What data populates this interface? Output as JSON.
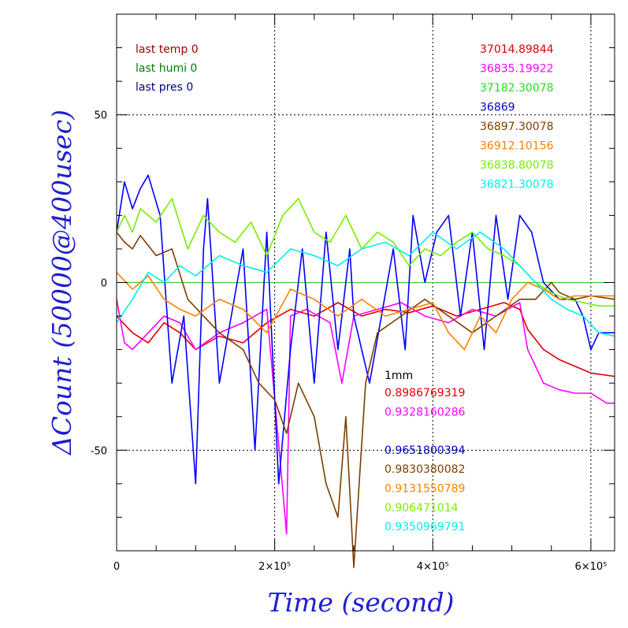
{
  "chart_data": {
    "type": "line",
    "xlabel": "Time (second)",
    "ylabel": "ΔCount (50000@400usec)",
    "xlim": [
      0,
      630000
    ],
    "ylim": [
      -80,
      80
    ],
    "x_ticks": [
      {
        "value": 0,
        "label": "0"
      },
      {
        "value": 200000,
        "label": "2×10⁵"
      },
      {
        "value": 400000,
        "label": "4×10⁵"
      },
      {
        "value": 600000,
        "label": "6×10⁵"
      }
    ],
    "y_ticks": [
      {
        "value": 50,
        "label": "50"
      },
      {
        "value": 0,
        "label": "0"
      },
      {
        "value": -50,
        "label": "-50"
      }
    ],
    "grid": true,
    "status_labels": [
      {
        "text": "last temp 0",
        "color": "#a00000"
      },
      {
        "text": "last humi 0",
        "color": "#008000"
      },
      {
        "text": "last pres 0",
        "color": "#000080"
      }
    ],
    "baseline_values": [
      {
        "text": "37014.89844",
        "color": "#e00000"
      },
      {
        "text": "36835.19922",
        "color": "#ff00ff"
      },
      {
        "text": "37182.30078",
        "color": "#22dd22"
      },
      {
        "text": "36869",
        "color": "#0000cc"
      },
      {
        "text": "36897.30078",
        "color": "#7b3f00"
      },
      {
        "text": "36912.10156",
        "color": "#ff8000"
      },
      {
        "text": "36838.80078",
        "color": "#77ee00"
      },
      {
        "text": "36821.30078",
        "color": "#00eeee"
      }
    ],
    "coefficient_header": {
      "text": "1mm",
      "color": "#000000"
    },
    "coefficients": [
      {
        "text": "0.8986769319",
        "color": "#e00000"
      },
      {
        "text": "0.9328160286",
        "color": "#ff00ff"
      },
      {
        "text": "",
        "color": "#22dd22"
      },
      {
        "text": "0.9651800394",
        "color": "#0000cc"
      },
      {
        "text": "0.9830380082",
        "color": "#7b3f00"
      },
      {
        "text": "0.9131550789",
        "color": "#ff8000"
      },
      {
        "text": "0.906471014",
        "color": "#77ee00"
      },
      {
        "text": "0.9350969791",
        "color": "#00eeee"
      }
    ],
    "series": [
      {
        "color": "#22cc22",
        "x": [
          0,
          630000
        ],
        "y": [
          0,
          0
        ]
      },
      {
        "color": "#e00000",
        "x": [
          0,
          20000,
          40000,
          60000,
          80000,
          100000,
          130000,
          160000,
          190000,
          220000,
          250000,
          280000,
          310000,
          340000,
          370000,
          400000,
          430000,
          460000,
          490000,
          510000,
          520000,
          530000,
          540000,
          560000,
          580000,
          600000,
          630000
        ],
        "y": [
          -10,
          -15,
          -18,
          -12,
          -15,
          -20,
          -16,
          -18,
          -12,
          -8,
          -10,
          -6,
          -10,
          -8,
          -9,
          -7,
          -10,
          -8,
          -6,
          -8,
          -14,
          -17,
          -20,
          -23,
          -25,
          -27,
          -28
        ]
      },
      {
        "color": "#ff00ff",
        "x": [
          0,
          10000,
          20000,
          40000,
          60000,
          80000,
          100000,
          130000,
          160000,
          190000,
          215000,
          220000,
          240000,
          270000,
          285000,
          300000,
          330000,
          360000,
          390000,
          420000,
          450000,
          480000,
          510000,
          520000,
          530000,
          540000,
          560000,
          580000,
          600000,
          620000,
          630000
        ],
        "y": [
          -5,
          -18,
          -20,
          -15,
          -10,
          -12,
          -20,
          -15,
          -12,
          -8,
          -75,
          -10,
          -8,
          -12,
          -30,
          -10,
          -8,
          -6,
          -10,
          -12,
          -8,
          -10,
          -6,
          -20,
          -25,
          -30,
          -32,
          -33,
          -33,
          -36,
          -36
        ]
      },
      {
        "color": "#0000ff",
        "x": [
          0,
          10000,
          20000,
          30000,
          40000,
          55000,
          70000,
          85000,
          100000,
          110000,
          115000,
          130000,
          145000,
          160000,
          175000,
          190000,
          205000,
          220000,
          235000,
          250000,
          265000,
          280000,
          295000,
          300000,
          320000,
          335000,
          350000,
          365000,
          375000,
          390000,
          405000,
          420000,
          435000,
          450000,
          465000,
          480000,
          495000,
          510000,
          525000,
          540000,
          560000,
          580000,
          590000,
          600000,
          610000,
          620000,
          630000
        ],
        "y": [
          15,
          30,
          22,
          28,
          32,
          20,
          -30,
          -10,
          -60,
          10,
          25,
          -30,
          -10,
          10,
          -50,
          15,
          -60,
          -20,
          10,
          -30,
          15,
          -20,
          10,
          -10,
          -30,
          -10,
          10,
          -20,
          20,
          0,
          15,
          20,
          -10,
          15,
          -20,
          20,
          -5,
          20,
          15,
          0,
          -5,
          -5,
          -10,
          -20,
          -15,
          -15,
          -15
        ]
      },
      {
        "color": "#7b3f00",
        "x": [
          0,
          10000,
          20000,
          30000,
          50000,
          70000,
          90000,
          110000,
          130000,
          160000,
          180000,
          200000,
          215000,
          230000,
          250000,
          265000,
          280000,
          290000,
          300000,
          315000,
          330000,
          360000,
          390000,
          420000,
          450000,
          480000,
          510000,
          530000,
          550000,
          560000,
          580000,
          600000,
          630000
        ],
        "y": [
          15,
          12,
          10,
          14,
          8,
          10,
          -5,
          -10,
          -15,
          -20,
          -30,
          -35,
          -45,
          -30,
          -40,
          -60,
          -70,
          -40,
          -85,
          -30,
          -15,
          -10,
          -5,
          -10,
          -15,
          -10,
          -5,
          -5,
          0,
          -3,
          -5,
          -4,
          -5
        ]
      },
      {
        "color": "#ff8000",
        "x": [
          0,
          20000,
          40000,
          60000,
          80000,
          100000,
          130000,
          160000,
          190000,
          220000,
          250000,
          280000,
          310000,
          340000,
          370000,
          400000,
          420000,
          440000,
          460000,
          480000,
          500000,
          520000,
          540000,
          560000,
          580000,
          600000,
          630000
        ],
        "y": [
          3,
          -2,
          2,
          -5,
          -8,
          -10,
          -5,
          -8,
          -15,
          -2,
          -5,
          -10,
          -5,
          -10,
          -8,
          -6,
          -15,
          -20,
          -10,
          -15,
          -5,
          0,
          -2,
          -5,
          -4,
          -4,
          -4
        ]
      },
      {
        "color": "#77ee00",
        "x": [
          0,
          10000,
          20000,
          30000,
          50000,
          70000,
          90000,
          110000,
          130000,
          150000,
          170000,
          190000,
          210000,
          230000,
          250000,
          270000,
          290000,
          310000,
          330000,
          350000,
          370000,
          390000,
          410000,
          430000,
          450000,
          470000,
          490000,
          510000,
          530000,
          550000,
          570000,
          590000,
          610000,
          630000
        ],
        "y": [
          15,
          20,
          15,
          22,
          18,
          25,
          10,
          20,
          15,
          12,
          18,
          8,
          20,
          25,
          15,
          12,
          20,
          10,
          15,
          12,
          5,
          10,
          8,
          12,
          15,
          10,
          8,
          5,
          0,
          -3,
          -5,
          -6,
          -7,
          -7
        ]
      },
      {
        "color": "#00eeee",
        "x": [
          0,
          20000,
          40000,
          60000,
          80000,
          100000,
          130000,
          160000,
          190000,
          220000,
          250000,
          280000,
          310000,
          340000,
          370000,
          400000,
          430000,
          460000,
          490000,
          510000,
          530000,
          550000,
          570000,
          590000,
          610000,
          630000
        ],
        "y": [
          -12,
          -5,
          3,
          0,
          5,
          2,
          8,
          5,
          3,
          10,
          8,
          5,
          10,
          12,
          8,
          15,
          10,
          15,
          10,
          5,
          0,
          -5,
          -8,
          -10,
          -15,
          -16
        ]
      }
    ]
  }
}
